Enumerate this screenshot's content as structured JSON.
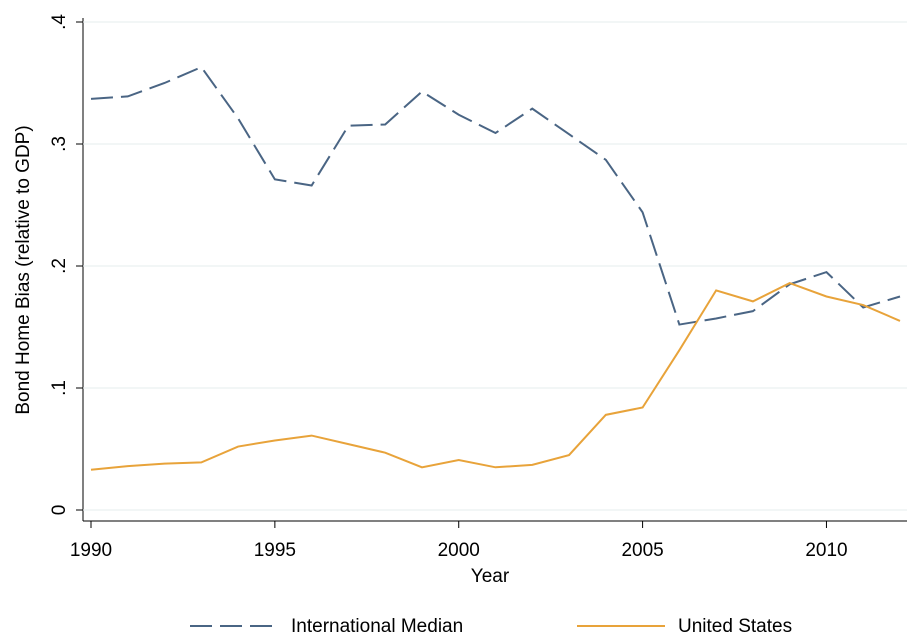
{
  "chart_data": {
    "type": "line",
    "x_label": "Year",
    "y_label": "Bond Home Bias (relative to GDP)",
    "x": [
      1990,
      1991,
      1992,
      1993,
      1994,
      1995,
      1996,
      1997,
      1998,
      1999,
      2000,
      2001,
      2002,
      2003,
      2004,
      2005,
      2006,
      2007,
      2008,
      2009,
      2010,
      2011,
      2012
    ],
    "series": [
      {
        "name": "International Median",
        "color": "#4a6584",
        "style": "dashed",
        "values": [
          0.337,
          0.339,
          0.35,
          0.363,
          0.321,
          0.271,
          0.266,
          0.315,
          0.316,
          0.343,
          0.324,
          0.309,
          0.329,
          0.308,
          0.287,
          0.244,
          0.152,
          0.157,
          0.163,
          0.185,
          0.195,
          0.166,
          0.175
        ]
      },
      {
        "name": "United States",
        "color": "#e8a33a",
        "style": "solid",
        "values": [
          0.033,
          0.036,
          0.038,
          0.039,
          0.052,
          0.057,
          0.061,
          0.054,
          0.047,
          0.035,
          0.041,
          0.035,
          0.037,
          0.045,
          0.078,
          0.084,
          0.131,
          0.18,
          0.171,
          0.186,
          0.175,
          0.168,
          0.155
        ]
      }
    ],
    "xlim": [
      1990,
      2012
    ],
    "xticks": [
      1990,
      1995,
      2000,
      2005,
      2010
    ],
    "ylim": [
      0,
      0.4
    ],
    "yticks": [
      0,
      {
        "value": 0.1,
        "label": ".1"
      },
      {
        "value": 0.2,
        "label": ".2"
      },
      {
        "value": 0.3,
        "label": ".3"
      },
      {
        "value": 0.4,
        "label": ".4"
      }
    ],
    "grid": true,
    "legend": "bottom"
  }
}
